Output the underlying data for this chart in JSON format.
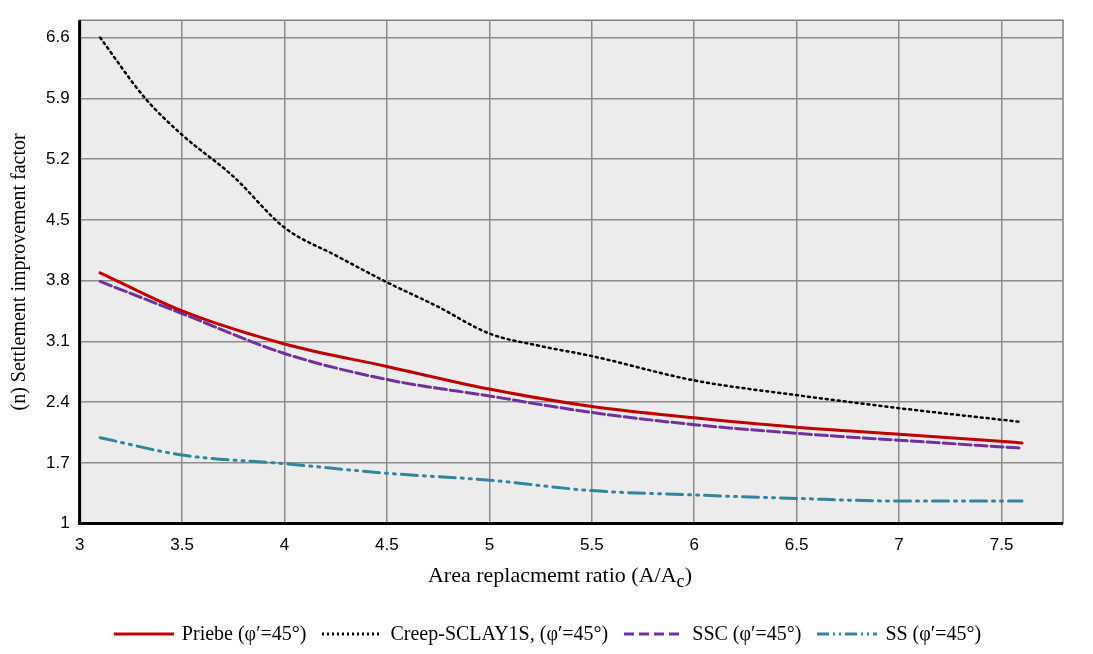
{
  "chart_data": {
    "type": "line",
    "xlabel": "Area replacmemt ratio (A/A$_{c}$)",
    "ylabel": "(n) Settlement improvement factor",
    "xlim": [
      3,
      7.8
    ],
    "ylim": [
      1,
      6.8
    ],
    "xticks": [
      3,
      3.5,
      4,
      4.5,
      5,
      5.5,
      6,
      6.5,
      7,
      7.5
    ],
    "yticks": [
      1,
      1.7,
      2.4,
      3.1,
      3.8,
      4.5,
      5.2,
      5.9,
      6.6
    ],
    "grid": true,
    "legend": "bottom",
    "marker": "none",
    "x": [
      3.1,
      3.5,
      4,
      4.5,
      5,
      5.5,
      6,
      6.5,
      7,
      7.6
    ],
    "series": [
      {
        "name": "Priebe (φ′=45°)",
        "color": "#c00000",
        "line_style": "solid",
        "values": [
          3.89,
          3.45,
          3.07,
          2.81,
          2.55,
          2.35,
          2.22,
          2.11,
          2.03,
          1.93
        ]
      },
      {
        "name": "Creep-SCLAY1S, (φ′=45°)",
        "color": "#000000",
        "line_style": "dotted",
        "x": [
          3.1,
          3.32,
          3.5,
          3.75,
          4,
          4.25,
          4.5,
          4.74,
          5,
          5.24,
          5.5,
          6,
          6.5,
          7,
          7.6
        ],
        "values": [
          6.6,
          5.9,
          5.48,
          5.0,
          4.41,
          4.09,
          3.78,
          3.51,
          3.19,
          3.05,
          2.93,
          2.65,
          2.48,
          2.33,
          2.17
        ]
      },
      {
        "name": "SSC (φ′=45°)",
        "color": "#7030a0",
        "line_style": "dashed",
        "values": [
          3.79,
          3.42,
          2.96,
          2.66,
          2.47,
          2.28,
          2.14,
          2.04,
          1.96,
          1.87
        ]
      },
      {
        "name": "SS (φ′=45°)",
        "color": "#31859c",
        "line_style": "dashdotdot",
        "values": [
          1.99,
          1.79,
          1.69,
          1.58,
          1.5,
          1.38,
          1.33,
          1.29,
          1.26,
          1.26
        ]
      }
    ]
  }
}
